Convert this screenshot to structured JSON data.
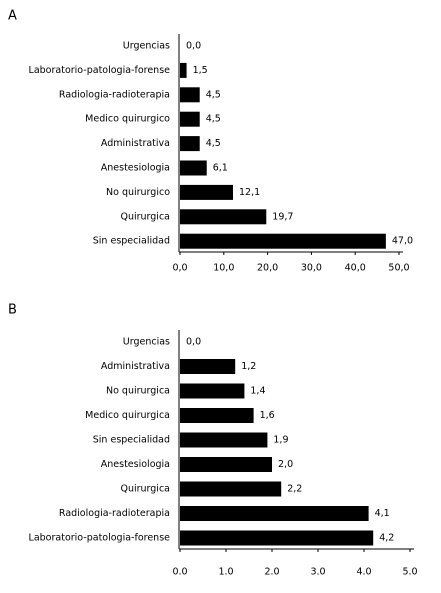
{
  "chart_data": [
    {
      "type": "bar",
      "orientation": "horizontal",
      "panel": "A",
      "color": "#000000",
      "categories": [
        "Urgencias",
        "Laboratorio-patologia-forense",
        "Radiologia-radioterapia",
        "Medico quirurgico",
        "Administrativa",
        "Anestesiologia",
        "No quirurgico",
        "Quirurgica",
        "Sin especialidad"
      ],
      "values": [
        0.0,
        1.5,
        4.5,
        4.5,
        4.5,
        6.1,
        12.1,
        19.7,
        47.0
      ],
      "value_labels": [
        "0,0",
        "1,5",
        "4,5",
        "4,5",
        "4,5",
        "6,1",
        "12,1",
        "19,7",
        "47,0"
      ],
      "xlim": [
        0,
        50
      ],
      "xticks": [
        {
          "value": 0,
          "label": "0,0"
        },
        {
          "value": 10,
          "label": "10,0"
        },
        {
          "value": 20,
          "label": "20,0"
        },
        {
          "value": 30,
          "label": "30,0"
        },
        {
          "value": 40,
          "label": "40,0"
        },
        {
          "value": 50,
          "label": "50,0"
        }
      ]
    },
    {
      "type": "bar",
      "orientation": "horizontal",
      "panel": "B",
      "color": "#000000",
      "categories": [
        "Urgencias",
        "Administrativa",
        "No quirurgica",
        "Medico quirurgica",
        "Sin especialidad",
        "Anestesiologia",
        "Quirurgica",
        "Radiologia-radioterapia",
        "Laboratorio-patologia-forense"
      ],
      "values": [
        0.0,
        1.2,
        1.4,
        1.6,
        1.9,
        2.0,
        2.2,
        4.1,
        4.2
      ],
      "value_labels": [
        "0,0",
        "1,2",
        "1,4",
        "1,6",
        "1,9",
        "2,0",
        "2,2",
        "4,1",
        "4,2"
      ],
      "xlim": [
        0,
        5
      ],
      "xticks": [
        {
          "value": 0,
          "label": "0.0"
        },
        {
          "value": 1,
          "label": "1.0"
        },
        {
          "value": 2,
          "label": "2.0"
        },
        {
          "value": 3,
          "label": "3.0"
        },
        {
          "value": 4,
          "label": "4.0"
        },
        {
          "value": 5,
          "label": "5.0"
        }
      ]
    }
  ]
}
